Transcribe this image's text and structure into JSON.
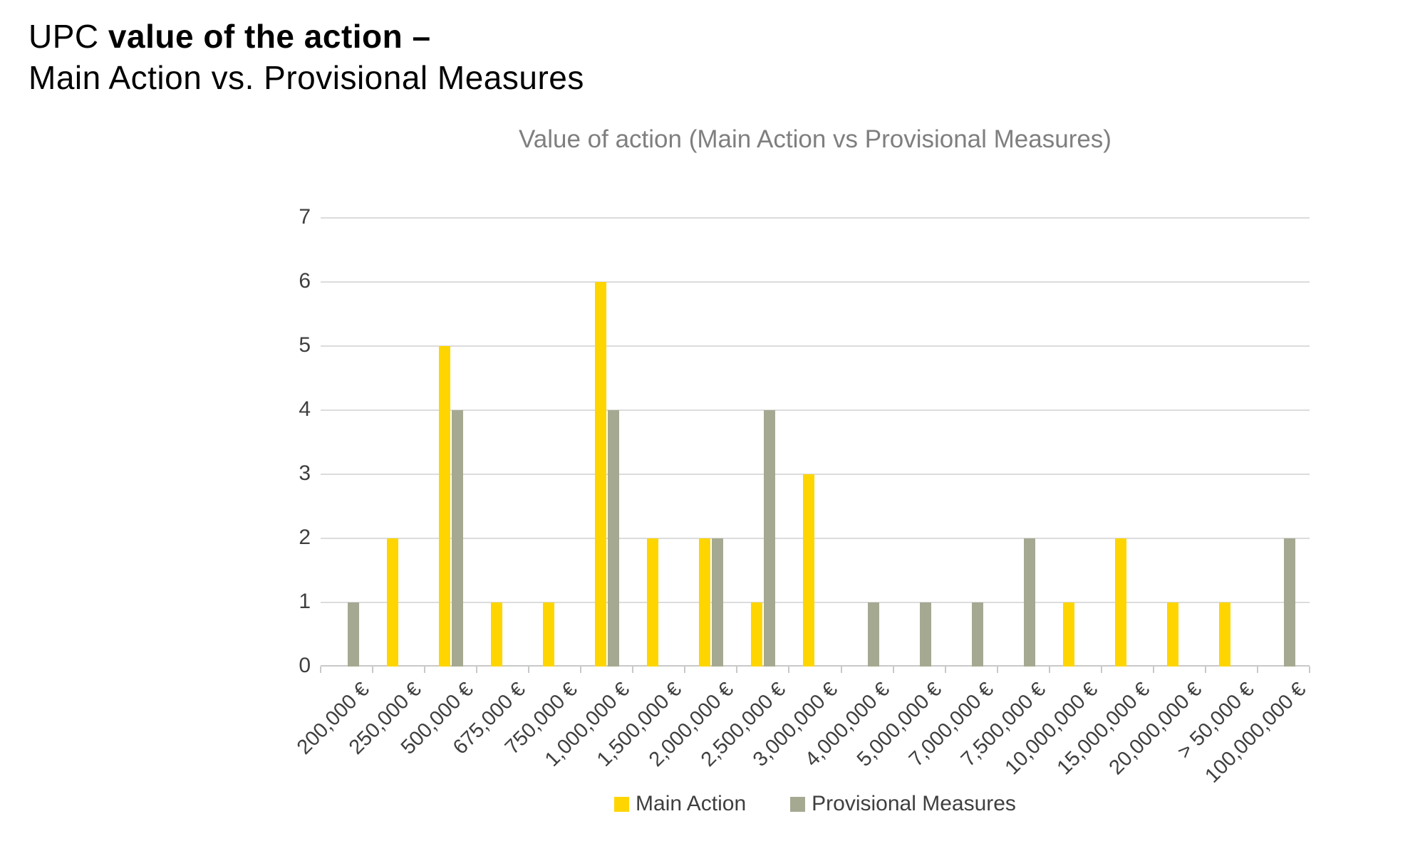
{
  "heading": {
    "regular": "UPC ",
    "bold": "value of the action",
    "dash": " –",
    "line2": "Main Action vs. Provisional Measures"
  },
  "chart_data": {
    "type": "bar",
    "title": "Value of action (Main Action vs Provisional Measures)",
    "categories": [
      "200,000 €",
      "250,000 €",
      "500,000 €",
      "675,000 €",
      "750,000 €",
      "1,000,000 €",
      "1,500,000 €",
      "2,000,000 €",
      "2,500,000 €",
      "3,000,000 €",
      "4,000,000 €",
      "5,000,000 €",
      "7,000,000 €",
      "7,500,000 €",
      "10,000,000 €",
      "15,000,000 €",
      "20,000,000 €",
      "> 50,000 €",
      "100,000,000 €"
    ],
    "series": [
      {
        "name": "Main Action",
        "color": "#FFD500",
        "values": [
          0,
          2,
          5,
          1,
          1,
          6,
          2,
          2,
          1,
          3,
          0,
          0,
          0,
          0,
          1,
          2,
          1,
          1,
          0
        ]
      },
      {
        "name": "Provisional Measures",
        "color": "#A6A992",
        "values": [
          1,
          0,
          4,
          0,
          0,
          4,
          0,
          2,
          4,
          0,
          1,
          1,
          1,
          2,
          0,
          0,
          0,
          0,
          2
        ]
      }
    ],
    "ylim": [
      0,
      7
    ],
    "yticks": [
      0,
      1,
      2,
      3,
      4,
      5,
      6,
      7
    ],
    "xlabel": "",
    "ylabel": "",
    "grid": true,
    "legend_position": "bottom"
  },
  "colors": {
    "gridline": "#DCDCDC",
    "axis_line": "#C9C9C9",
    "heading_text": "#000000",
    "chart_title_text": "#7F7F7F",
    "axis_label_text": "#3F3F3F"
  }
}
